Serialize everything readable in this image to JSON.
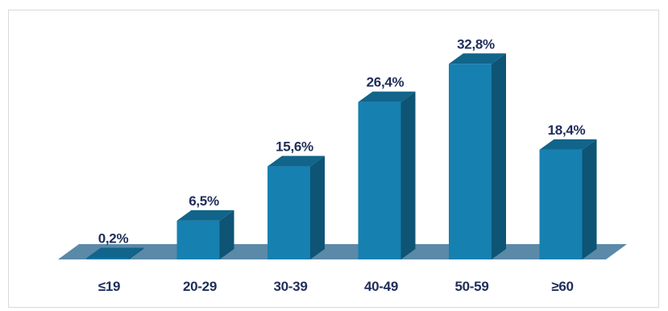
{
  "chart_data": {
    "type": "bar",
    "style": "3d",
    "categories": [
      "≤19",
      "20-29",
      "30-39",
      "40-49",
      "50-59",
      "≥60"
    ],
    "values": [
      0.2,
      6.5,
      15.6,
      26.4,
      32.8,
      18.4
    ],
    "data_labels": [
      "0,2%",
      "6,5%",
      "15,6%",
      "26,4%",
      "32,8%",
      "18,4%"
    ],
    "title": "",
    "xlabel": "",
    "ylabel": "",
    "ylim": [
      0,
      35
    ],
    "grid": false,
    "legend": "none",
    "colors": {
      "bar_front": "#1680b0",
      "bar_side": "#0e5475",
      "bar_top": "#11648a",
      "floor": "#5b89a8",
      "label_text": "#1f2d5a"
    }
  }
}
